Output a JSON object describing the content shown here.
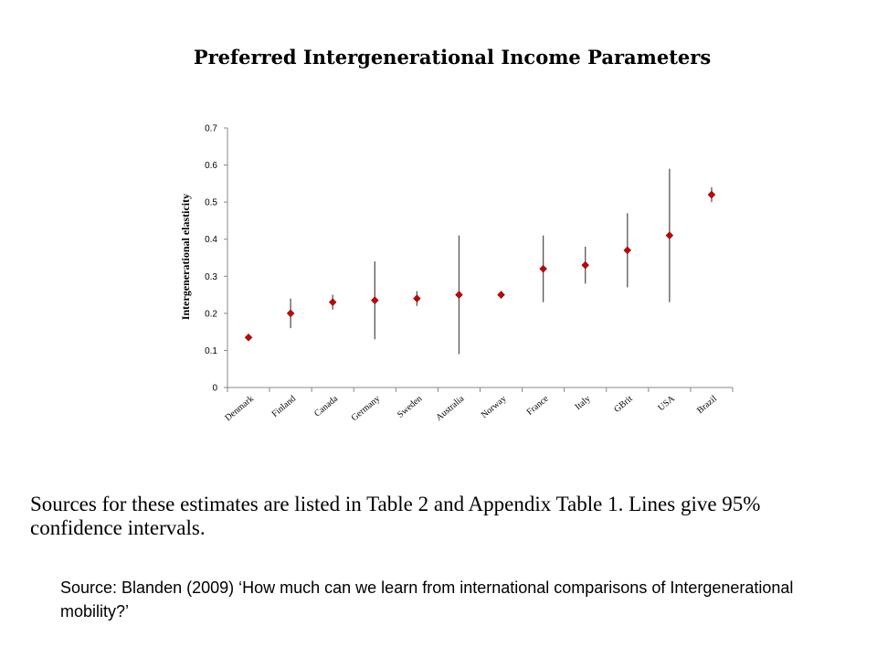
{
  "chart_data": {
    "type": "scatter",
    "title": "Preferred Intergenerational Income Parameters",
    "ylabel": "Intergenerational elasticity",
    "xlabel": "",
    "ylim": [
      0,
      0.7
    ],
    "yticks": [
      "0",
      "0.1",
      "0.2",
      "0.3",
      "0.4",
      "0.5",
      "0.6",
      "0.7"
    ],
    "grid": false,
    "legend": "none",
    "marker_color": "#cc0000",
    "error_bar_color": "#555555",
    "categories": [
      "Denmark",
      "Finland",
      "Canada",
      "Germany",
      "Sweden",
      "Australia",
      "Norway",
      "France",
      "Italy",
      "GBrit",
      "USA",
      "Brazil"
    ],
    "values": [
      0.135,
      0.2,
      0.23,
      0.235,
      0.24,
      0.25,
      0.25,
      0.32,
      0.33,
      0.37,
      0.41,
      0.52
    ],
    "ci_low": [
      0.13,
      0.16,
      0.21,
      0.13,
      0.22,
      0.09,
      0.24,
      0.23,
      0.28,
      0.27,
      0.23,
      0.5
    ],
    "ci_high": [
      0.14,
      0.24,
      0.25,
      0.34,
      0.26,
      0.41,
      0.26,
      0.41,
      0.38,
      0.47,
      0.59,
      0.54
    ]
  },
  "note": "Sources for these estimates are listed in Table 2 and Appendix Table 1. Lines give 95% confidence intervals.",
  "source": "Source: Blanden (2009) ‘How much can we learn from international comparisons of Intergenerational mobility?’"
}
